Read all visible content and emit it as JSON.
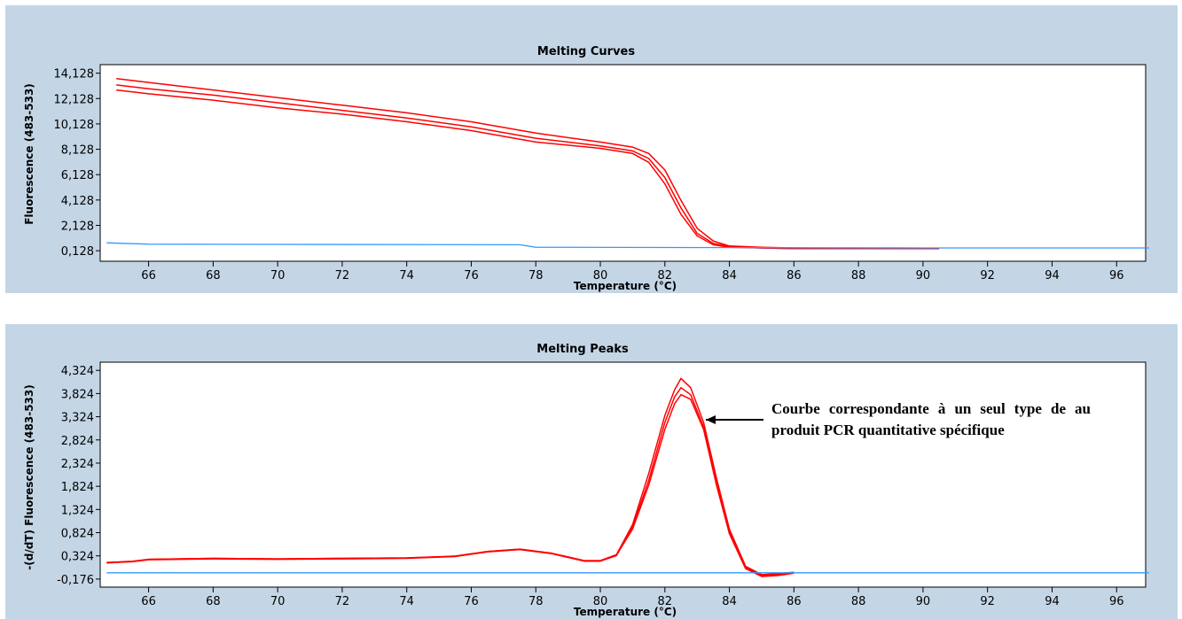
{
  "chart_data": [
    {
      "type": "line",
      "title": "Melting Curves",
      "xlabel": "Temperature (°C)",
      "ylabel": "Fluorescence (483-533)",
      "xlim": [
        64.5,
        96.9
      ],
      "ylim": [
        -0.7,
        14.8
      ],
      "xticks": [
        "66",
        "68",
        "70",
        "72",
        "74",
        "76",
        "78",
        "80",
        "82",
        "84",
        "86",
        "88",
        "90",
        "92",
        "94",
        "96"
      ],
      "yticks": [
        "0,128",
        "2,128",
        "4,128",
        "6,128",
        "8,128",
        "10,128",
        "12,128",
        "14,128"
      ],
      "grid": false,
      "series": [
        {
          "color": "#ff0000",
          "x": [
            65,
            66,
            68,
            70,
            72,
            74,
            76,
            78,
            80,
            81,
            81.5,
            82,
            82.5,
            83,
            83.5,
            84,
            85,
            86,
            88,
            90.5
          ],
          "y": [
            13.7,
            13.4,
            12.8,
            12.2,
            11.6,
            11.0,
            10.3,
            9.4,
            8.7,
            8.3,
            7.8,
            6.5,
            4.1,
            1.9,
            0.9,
            0.5,
            0.4,
            0.35,
            0.3,
            0.3
          ]
        },
        {
          "color": "#ff0000",
          "x": [
            65,
            66,
            68,
            70,
            72,
            74,
            76,
            78,
            80,
            81,
            81.5,
            82,
            82.5,
            83,
            83.5,
            84,
            85,
            86,
            88,
            90.5
          ],
          "y": [
            13.2,
            12.9,
            12.4,
            11.8,
            11.2,
            10.6,
            9.9,
            9.0,
            8.4,
            8.0,
            7.4,
            5.9,
            3.5,
            1.5,
            0.7,
            0.45,
            0.35,
            0.3,
            0.3,
            0.3
          ]
        },
        {
          "color": "#ff0000",
          "x": [
            65,
            66,
            68,
            70,
            72,
            74,
            76,
            78,
            80,
            81,
            81.5,
            82,
            82.5,
            83,
            83.5,
            84,
            85,
            86,
            88,
            90.5
          ],
          "y": [
            12.8,
            12.5,
            12.0,
            11.4,
            10.9,
            10.3,
            9.6,
            8.7,
            8.2,
            7.8,
            7.1,
            5.4,
            3.0,
            1.3,
            0.6,
            0.4,
            0.35,
            0.3,
            0.3,
            0.3
          ]
        },
        {
          "color": "#3399ff",
          "x": [
            64.7,
            66,
            77.5,
            78,
            90,
            97
          ],
          "y": [
            0.75,
            0.65,
            0.6,
            0.4,
            0.35,
            0.35
          ]
        }
      ]
    },
    {
      "type": "line",
      "title": "Melting Peaks",
      "xlabel": "Temperature (°C)",
      "ylabel": "-(d/dT) Fluorescence (483-533)",
      "xlim": [
        64.5,
        96.9
      ],
      "ylim": [
        -0.35,
        4.5
      ],
      "xticks": [
        "66",
        "68",
        "70",
        "72",
        "74",
        "76",
        "78",
        "80",
        "82",
        "84",
        "86",
        "88",
        "90",
        "92",
        "94",
        "96"
      ],
      "yticks": [
        "-0,176",
        "0,324",
        "0,824",
        "1,324",
        "1,824",
        "2,324",
        "2,824",
        "3,324",
        "3,824",
        "4,324"
      ],
      "grid": false,
      "series": [
        {
          "color": "#ff0000",
          "x": [
            64.7,
            65.5,
            66,
            68,
            70,
            72,
            74,
            75.5,
            76.5,
            77.5,
            78.5,
            79.5,
            80,
            80.5,
            81,
            81.5,
            82,
            82.3,
            82.5,
            82.8,
            83.2,
            83.6,
            84,
            84.5,
            85,
            85.5,
            86
          ],
          "y": [
            0.18,
            0.2,
            0.25,
            0.27,
            0.26,
            0.27,
            0.28,
            0.32,
            0.42,
            0.47,
            0.38,
            0.22,
            0.22,
            0.35,
            1.0,
            2.1,
            3.35,
            3.9,
            4.15,
            3.95,
            3.2,
            2.0,
            0.9,
            0.1,
            -0.08,
            -0.06,
            -0.03
          ]
        },
        {
          "color": "#ff0000",
          "x": [
            64.7,
            65.5,
            66,
            68,
            70,
            72,
            74,
            75.5,
            76.5,
            77.5,
            78.5,
            79.5,
            80,
            80.5,
            81,
            81.5,
            82,
            82.3,
            82.5,
            82.8,
            83.2,
            83.6,
            84,
            84.5,
            85,
            85.5,
            86
          ],
          "y": [
            0.17,
            0.2,
            0.24,
            0.26,
            0.25,
            0.26,
            0.27,
            0.31,
            0.41,
            0.46,
            0.37,
            0.21,
            0.21,
            0.33,
            0.95,
            1.95,
            3.2,
            3.75,
            3.95,
            3.8,
            3.1,
            1.9,
            0.85,
            0.08,
            -0.1,
            -0.08,
            -0.04
          ]
        },
        {
          "color": "#ff0000",
          "x": [
            64.7,
            65.5,
            66,
            68,
            70,
            72,
            74,
            75.5,
            76.5,
            77.5,
            78.5,
            79.5,
            80,
            80.5,
            81,
            81.5,
            82,
            82.3,
            82.5,
            82.8,
            83.2,
            83.6,
            84,
            84.5,
            85,
            85.5,
            86
          ],
          "y": [
            0.18,
            0.21,
            0.25,
            0.27,
            0.26,
            0.27,
            0.28,
            0.31,
            0.42,
            0.47,
            0.38,
            0.22,
            0.22,
            0.34,
            0.9,
            1.85,
            3.05,
            3.6,
            3.8,
            3.7,
            3.05,
            1.85,
            0.8,
            0.05,
            -0.12,
            -0.1,
            -0.05
          ]
        },
        {
          "color": "#3399ff",
          "x": [
            64.7,
            97
          ],
          "y": [
            -0.04,
            -0.04
          ]
        }
      ],
      "annotation": "Courbe correspondante à un seul type de au produit PCR quantitative spécifique"
    }
  ]
}
